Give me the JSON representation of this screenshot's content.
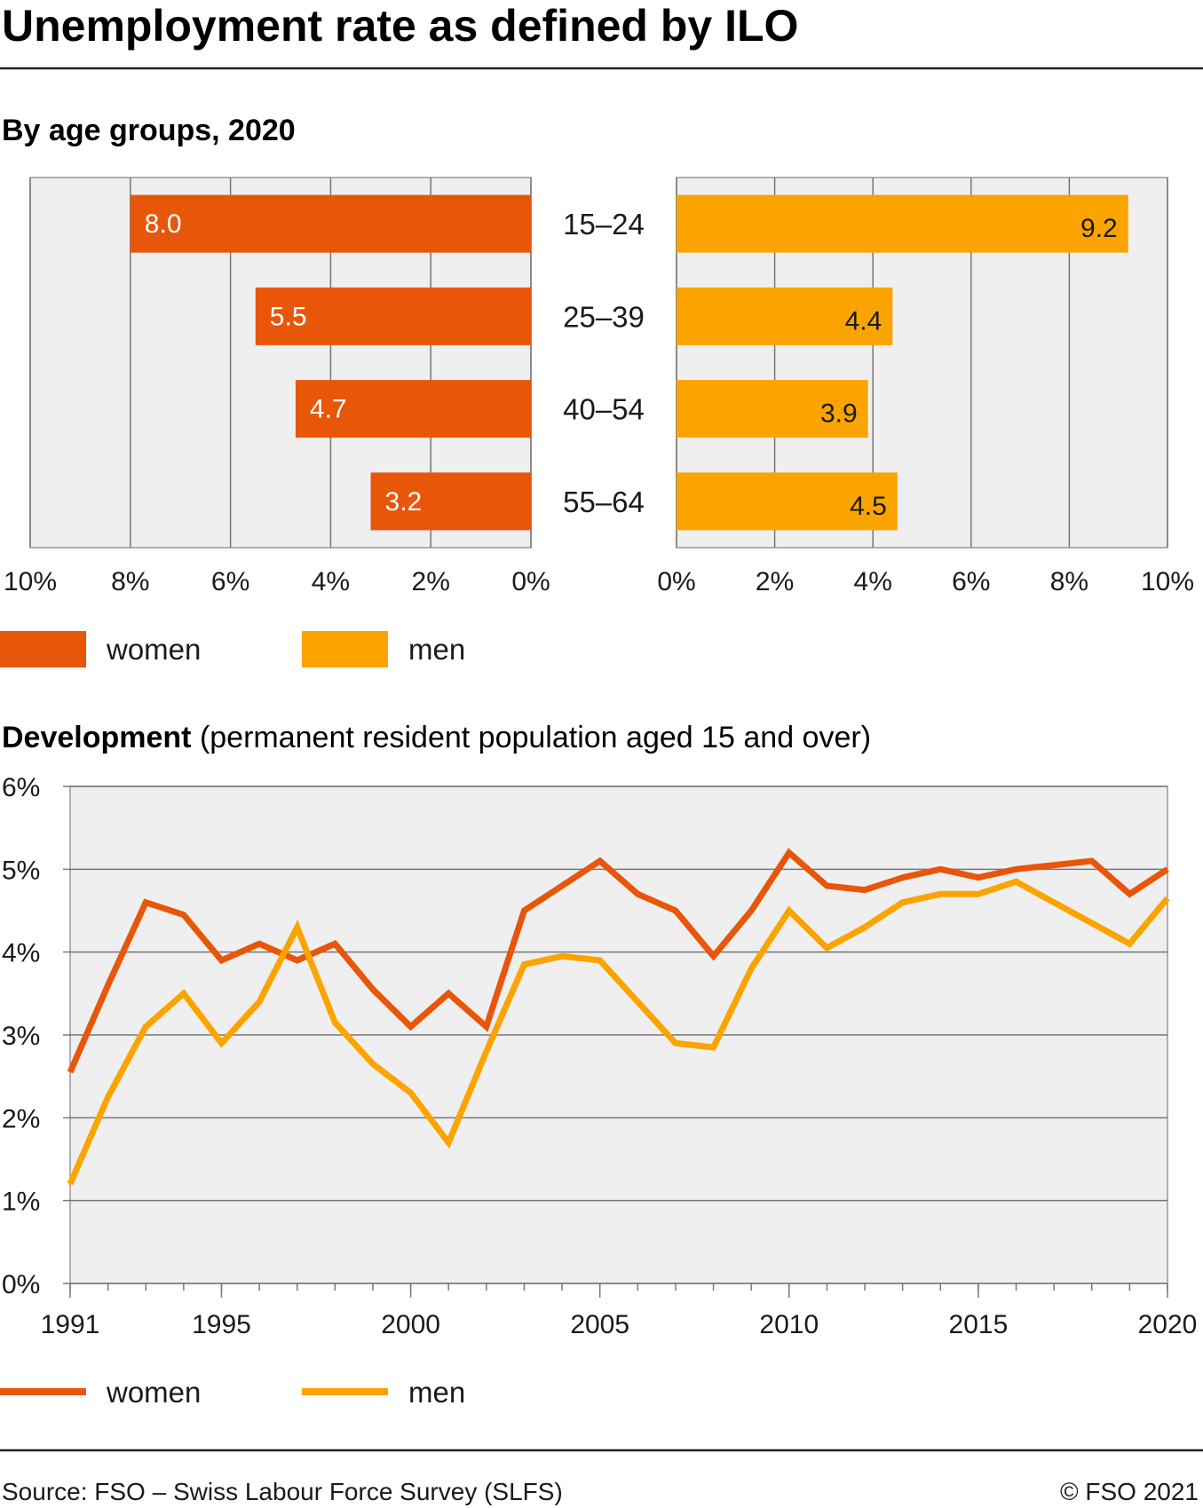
{
  "title": "Unemployment rate as defined by ILO",
  "colors": {
    "women": "#e8560a",
    "men": "#fba400",
    "plot_bg": "#efefef",
    "grid": "#777777",
    "rule": "#222222"
  },
  "footer": {
    "source": "Source: FSO – Swiss Labour Force Survey (SLFS)",
    "copyright": "© FSO 2021"
  },
  "chart_data": [
    {
      "type": "bar",
      "subtitle": "By age groups, 2020",
      "categories": [
        "15–24",
        "25–39",
        "40–54",
        "55–64"
      ],
      "series": [
        {
          "name": "women",
          "values": [
            8.0,
            5.5,
            4.7,
            3.2
          ],
          "labels": [
            "8.0",
            "5.5",
            "4.7",
            "3.2"
          ]
        },
        {
          "name": "men",
          "values": [
            9.2,
            4.4,
            3.9,
            4.5
          ],
          "labels": [
            "9.2",
            "4.4",
            "3.9",
            "4.5"
          ]
        }
      ],
      "xlim": [
        0,
        10
      ],
      "xticks": [
        0,
        2,
        4,
        6,
        8,
        10
      ],
      "tick_format": "%",
      "grid": true,
      "legend": {
        "entries": [
          "women",
          "men"
        ],
        "position": "bottom-left"
      }
    },
    {
      "type": "line",
      "subtitle_bold": "Development",
      "subtitle_rest": " (permanent resident population aged 15 and over)",
      "x": [
        1991,
        1992,
        1993,
        1994,
        1995,
        1996,
        1997,
        1998,
        1999,
        2000,
        2001,
        2002,
        2003,
        2004,
        2005,
        2006,
        2007,
        2008,
        2009,
        2010,
        2011,
        2012,
        2013,
        2014,
        2015,
        2016,
        2017,
        2018,
        2019,
        2020
      ],
      "series": [
        {
          "name": "women",
          "values": [
            2.55,
            3.6,
            4.6,
            4.45,
            3.9,
            4.1,
            3.9,
            4.1,
            3.55,
            3.1,
            3.5,
            3.1,
            4.5,
            4.8,
            5.1,
            4.7,
            4.5,
            3.95,
            4.5,
            5.2,
            4.8,
            4.75,
            4.9,
            5.0,
            4.9,
            5.0,
            5.05,
            5.1,
            4.7,
            5.0
          ]
        },
        {
          "name": "men",
          "values": [
            1.2,
            2.25,
            3.1,
            3.5,
            2.9,
            3.4,
            4.3,
            3.15,
            2.65,
            2.3,
            1.7,
            2.8,
            3.85,
            3.95,
            3.9,
            3.4,
            2.9,
            2.85,
            3.8,
            4.5,
            4.05,
            4.3,
            4.6,
            4.7,
            4.7,
            4.85,
            4.6,
            4.35,
            4.1,
            4.65
          ]
        }
      ],
      "ylim": [
        0,
        6
      ],
      "yticks": [
        "0%",
        "1%",
        "2%",
        "3%",
        "4%",
        "5%",
        "6%"
      ],
      "xlim": [
        1991,
        2020
      ],
      "xticks": [
        "1991",
        "1995",
        "2000",
        "2005",
        "2010",
        "2015",
        "2020"
      ],
      "grid": true,
      "legend": {
        "entries": [
          "women",
          "men"
        ],
        "position": "bottom-left"
      }
    }
  ]
}
